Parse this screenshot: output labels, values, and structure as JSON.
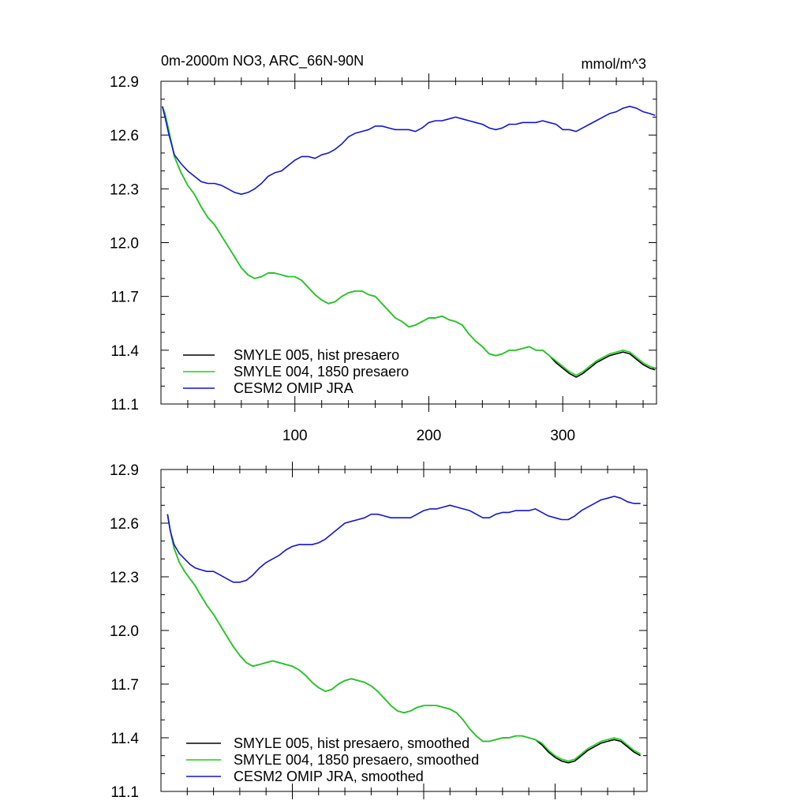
{
  "chart_data": [
    {
      "type": "line",
      "title": "0m-2000m NO3, ARC_66N-90N",
      "units": "mmol/m^3",
      "xlabel": "",
      "ylabel": "",
      "xlim": [
        0,
        370
      ],
      "ylim": [
        11.1,
        12.9
      ],
      "yticks": [
        "12.9",
        "12.6",
        "12.3",
        "12.0",
        "11.7",
        "11.4",
        "11.1"
      ],
      "xticks": [
        "100",
        "200",
        "300"
      ],
      "legend_position": "lower-left",
      "series": [
        {
          "name": "SMYLE 005, hist presaero",
          "color": "#000000",
          "x": [
            1,
            3,
            6,
            10,
            15,
            20,
            25,
            30,
            35,
            40,
            45,
            50,
            55,
            60,
            65,
            70,
            75,
            80,
            85,
            90,
            95,
            100,
            105,
            110,
            115,
            120,
            125,
            130,
            135,
            140,
            145,
            150,
            155,
            160,
            165,
            170,
            175,
            180,
            185,
            190,
            195,
            200,
            205,
            210,
            215,
            220,
            225,
            230,
            235,
            240,
            245,
            250,
            255,
            260,
            265,
            270,
            275,
            280,
            285,
            290,
            295,
            300,
            305,
            310,
            315,
            320,
            325,
            330,
            335,
            340,
            345,
            350,
            355,
            360,
            365,
            369
          ],
          "values": [
            12.76,
            12.72,
            12.62,
            12.48,
            12.39,
            12.32,
            12.27,
            12.2,
            12.14,
            12.1,
            12.04,
            11.98,
            11.92,
            11.86,
            11.82,
            11.8,
            11.81,
            11.83,
            11.83,
            11.82,
            11.81,
            11.81,
            11.79,
            11.75,
            11.71,
            11.68,
            11.66,
            11.67,
            11.7,
            11.72,
            11.73,
            11.73,
            11.71,
            11.7,
            11.66,
            11.62,
            11.58,
            11.56,
            11.53,
            11.54,
            11.56,
            11.58,
            11.58,
            11.59,
            11.57,
            11.56,
            11.54,
            11.49,
            11.45,
            11.42,
            11.38,
            11.37,
            11.38,
            11.4,
            11.4,
            11.41,
            11.42,
            11.4,
            11.4,
            11.37,
            11.33,
            11.3,
            11.27,
            11.25,
            11.27,
            11.3,
            11.33,
            11.35,
            11.37,
            11.38,
            11.39,
            11.38,
            11.35,
            11.32,
            11.3,
            11.29
          ]
        },
        {
          "name": "SMYLE 004, 1850 presaero",
          "color": "#19d219",
          "x": [
            1,
            3,
            6,
            10,
            15,
            20,
            25,
            30,
            35,
            40,
            45,
            50,
            55,
            60,
            65,
            70,
            75,
            80,
            85,
            90,
            95,
            100,
            105,
            110,
            115,
            120,
            125,
            130,
            135,
            140,
            145,
            150,
            155,
            160,
            165,
            170,
            175,
            180,
            185,
            190,
            195,
            200,
            205,
            210,
            215,
            220,
            225,
            230,
            235,
            240,
            245,
            250,
            255,
            260,
            265,
            270,
            275,
            280,
            285,
            290,
            295,
            300,
            305,
            310,
            315,
            320,
            325,
            330,
            335,
            340,
            345,
            350,
            355,
            360,
            365,
            369
          ],
          "values": [
            12.76,
            12.72,
            12.62,
            12.48,
            12.39,
            12.32,
            12.27,
            12.2,
            12.14,
            12.1,
            12.04,
            11.98,
            11.92,
            11.86,
            11.82,
            11.8,
            11.81,
            11.83,
            11.83,
            11.82,
            11.81,
            11.81,
            11.79,
            11.75,
            11.71,
            11.68,
            11.66,
            11.67,
            11.7,
            11.72,
            11.73,
            11.73,
            11.71,
            11.7,
            11.66,
            11.62,
            11.58,
            11.56,
            11.53,
            11.54,
            11.56,
            11.58,
            11.58,
            11.59,
            11.57,
            11.56,
            11.54,
            11.49,
            11.45,
            11.42,
            11.38,
            11.37,
            11.38,
            11.4,
            11.4,
            11.41,
            11.42,
            11.4,
            11.4,
            11.37,
            11.34,
            11.31,
            11.28,
            11.26,
            11.28,
            11.31,
            11.34,
            11.36,
            11.38,
            11.39,
            11.4,
            11.39,
            11.36,
            11.33,
            11.31,
            11.3
          ]
        },
        {
          "name": "CESM2 OMIP JRA",
          "color": "#1414d2",
          "x": [
            1,
            3,
            6,
            10,
            15,
            20,
            25,
            30,
            35,
            40,
            45,
            50,
            55,
            60,
            65,
            70,
            75,
            80,
            85,
            90,
            95,
            100,
            105,
            110,
            115,
            120,
            125,
            130,
            135,
            140,
            145,
            150,
            155,
            160,
            165,
            170,
            175,
            180,
            185,
            190,
            195,
            200,
            205,
            210,
            215,
            220,
            225,
            230,
            235,
            240,
            245,
            250,
            255,
            260,
            265,
            270,
            275,
            280,
            285,
            290,
            295,
            300,
            305,
            310,
            315,
            320,
            325,
            330,
            335,
            340,
            345,
            350,
            355,
            360,
            365,
            369
          ],
          "values": [
            12.76,
            12.7,
            12.6,
            12.49,
            12.44,
            12.4,
            12.37,
            12.34,
            12.33,
            12.33,
            12.32,
            12.3,
            12.28,
            12.27,
            12.28,
            12.3,
            12.33,
            12.37,
            12.39,
            12.4,
            12.43,
            12.46,
            12.48,
            12.48,
            12.47,
            12.49,
            12.5,
            12.52,
            12.55,
            12.59,
            12.61,
            12.62,
            12.63,
            12.65,
            12.65,
            12.64,
            12.63,
            12.63,
            12.63,
            12.62,
            12.64,
            12.67,
            12.68,
            12.68,
            12.69,
            12.7,
            12.69,
            12.68,
            12.67,
            12.66,
            12.64,
            12.63,
            12.64,
            12.66,
            12.66,
            12.67,
            12.67,
            12.67,
            12.68,
            12.67,
            12.66,
            12.63,
            12.63,
            12.62,
            12.64,
            12.66,
            12.68,
            12.7,
            12.72,
            12.73,
            12.75,
            12.76,
            12.75,
            12.73,
            12.72,
            12.71
          ]
        }
      ]
    },
    {
      "type": "line",
      "title": "",
      "xlim": [
        0,
        370
      ],
      "ylim": [
        11.1,
        12.9
      ],
      "yticks": [
        "12.9",
        "12.6",
        "12.3",
        "12.0",
        "11.7",
        "11.4",
        "11.1"
      ],
      "legend_position": "lower-left",
      "series": [
        {
          "name": "SMYLE 005, hist presaero, smoothed",
          "color": "#000000",
          "x": [
            5,
            7,
            10,
            14,
            18,
            22,
            26,
            30,
            35,
            40,
            45,
            50,
            55,
            60,
            65,
            70,
            75,
            80,
            85,
            90,
            95,
            100,
            105,
            110,
            115,
            120,
            125,
            130,
            135,
            140,
            145,
            150,
            155,
            160,
            165,
            170,
            175,
            180,
            185,
            190,
            195,
            200,
            205,
            210,
            215,
            220,
            225,
            230,
            235,
            240,
            245,
            250,
            255,
            260,
            265,
            270,
            275,
            280,
            285,
            290,
            295,
            300,
            305,
            310,
            315,
            320,
            325,
            330,
            335,
            340,
            345,
            350,
            355,
            360,
            365
          ],
          "values": [
            12.65,
            12.56,
            12.46,
            12.38,
            12.33,
            12.29,
            12.25,
            12.2,
            12.14,
            12.09,
            12.03,
            11.97,
            11.91,
            11.86,
            11.82,
            11.8,
            11.81,
            11.82,
            11.83,
            11.82,
            11.81,
            11.8,
            11.78,
            11.75,
            11.71,
            11.68,
            11.66,
            11.67,
            11.7,
            11.72,
            11.73,
            11.72,
            11.71,
            11.69,
            11.66,
            11.62,
            11.58,
            11.55,
            11.54,
            11.55,
            11.57,
            11.58,
            11.58,
            11.58,
            11.57,
            11.56,
            11.54,
            11.5,
            11.45,
            11.41,
            11.38,
            11.38,
            11.39,
            11.4,
            11.4,
            11.41,
            11.41,
            11.4,
            11.39,
            11.36,
            11.32,
            11.29,
            11.27,
            11.26,
            11.27,
            11.3,
            11.33,
            11.35,
            11.37,
            11.38,
            11.39,
            11.38,
            11.35,
            11.32,
            11.3
          ]
        },
        {
          "name": "SMYLE 004, 1850 presaero, smoothed",
          "color": "#19d219",
          "x": [
            5,
            7,
            10,
            14,
            18,
            22,
            26,
            30,
            35,
            40,
            45,
            50,
            55,
            60,
            65,
            70,
            75,
            80,
            85,
            90,
            95,
            100,
            105,
            110,
            115,
            120,
            125,
            130,
            135,
            140,
            145,
            150,
            155,
            160,
            165,
            170,
            175,
            180,
            185,
            190,
            195,
            200,
            205,
            210,
            215,
            220,
            225,
            230,
            235,
            240,
            245,
            250,
            255,
            260,
            265,
            270,
            275,
            280,
            285,
            290,
            295,
            300,
            305,
            310,
            315,
            320,
            325,
            330,
            335,
            340,
            345,
            350,
            355,
            360,
            365
          ],
          "values": [
            12.65,
            12.56,
            12.46,
            12.38,
            12.33,
            12.29,
            12.25,
            12.2,
            12.14,
            12.09,
            12.03,
            11.97,
            11.91,
            11.86,
            11.82,
            11.8,
            11.81,
            11.82,
            11.83,
            11.82,
            11.81,
            11.8,
            11.78,
            11.75,
            11.71,
            11.68,
            11.66,
            11.67,
            11.7,
            11.72,
            11.73,
            11.72,
            11.71,
            11.69,
            11.66,
            11.62,
            11.58,
            11.55,
            11.54,
            11.55,
            11.57,
            11.58,
            11.58,
            11.58,
            11.57,
            11.56,
            11.54,
            11.5,
            11.45,
            11.41,
            11.38,
            11.38,
            11.39,
            11.4,
            11.4,
            11.41,
            11.41,
            11.4,
            11.39,
            11.37,
            11.33,
            11.3,
            11.28,
            11.27,
            11.28,
            11.31,
            11.34,
            11.36,
            11.38,
            11.39,
            11.4,
            11.39,
            11.36,
            11.33,
            11.31
          ]
        },
        {
          "name": "CESM2 OMIP JRA, smoothed",
          "color": "#1414d2",
          "x": [
            5,
            7,
            10,
            14,
            18,
            22,
            26,
            30,
            35,
            40,
            45,
            50,
            55,
            60,
            65,
            70,
            75,
            80,
            85,
            90,
            95,
            100,
            105,
            110,
            115,
            120,
            125,
            130,
            135,
            140,
            145,
            150,
            155,
            160,
            165,
            170,
            175,
            180,
            185,
            190,
            195,
            200,
            205,
            210,
            215,
            220,
            225,
            230,
            235,
            240,
            245,
            250,
            255,
            260,
            265,
            270,
            275,
            280,
            285,
            290,
            295,
            300,
            305,
            310,
            315,
            320,
            325,
            330,
            335,
            340,
            345,
            350,
            355,
            360,
            365
          ],
          "values": [
            12.65,
            12.56,
            12.48,
            12.43,
            12.4,
            12.37,
            12.35,
            12.34,
            12.33,
            12.33,
            12.31,
            12.29,
            12.27,
            12.27,
            12.28,
            12.31,
            12.35,
            12.38,
            12.4,
            12.42,
            12.45,
            12.47,
            12.48,
            12.48,
            12.48,
            12.49,
            12.51,
            12.54,
            12.57,
            12.6,
            12.61,
            12.62,
            12.63,
            12.65,
            12.65,
            12.64,
            12.63,
            12.63,
            12.63,
            12.63,
            12.65,
            12.67,
            12.68,
            12.68,
            12.69,
            12.7,
            12.69,
            12.68,
            12.67,
            12.65,
            12.63,
            12.63,
            12.65,
            12.66,
            12.66,
            12.67,
            12.67,
            12.67,
            12.68,
            12.66,
            12.64,
            12.63,
            12.62,
            12.62,
            12.64,
            12.67,
            12.69,
            12.71,
            12.73,
            12.74,
            12.75,
            12.74,
            12.72,
            12.71,
            12.71
          ]
        }
      ]
    }
  ]
}
